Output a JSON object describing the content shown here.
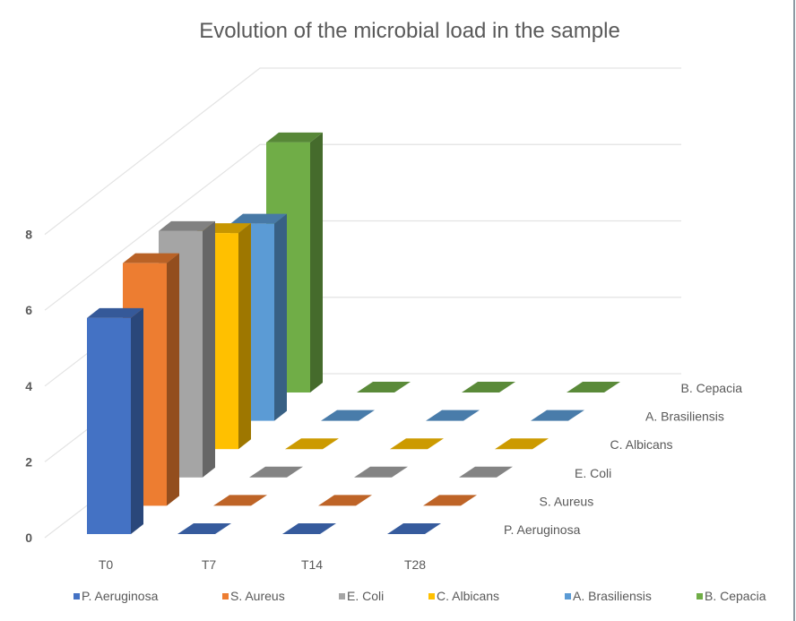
{
  "chart_data": {
    "type": "bar",
    "subtype": "3d-column",
    "title": "Evolution of the microbial load in the sample",
    "xlabel": "",
    "ylabel": "",
    "categories": [
      "T0",
      "T7",
      "T14",
      "T28"
    ],
    "ylim": [
      0,
      8
    ],
    "yticks": [
      "0",
      "2",
      "4",
      "6",
      "8"
    ],
    "grid": true,
    "legend_position": "bottom",
    "series": [
      {
        "name": "P. Aeruginosa",
        "color": "#4472c4",
        "values": [
          5.7,
          0,
          0,
          0
        ]
      },
      {
        "name": "S. Aureus",
        "color": "#ed7d31",
        "values": [
          6.4,
          0,
          0,
          0
        ]
      },
      {
        "name": "E. Coli",
        "color": "#a5a5a5",
        "values": [
          6.5,
          0,
          0,
          0
        ]
      },
      {
        "name": "C. Albicans",
        "color": "#ffc000",
        "values": [
          5.7,
          0,
          0,
          0
        ]
      },
      {
        "name": "A. Brasiliensis",
        "color": "#5b9bd5",
        "values": [
          5.2,
          0,
          0,
          0
        ]
      },
      {
        "name": "B. Cepacia",
        "color": "#70ad47",
        "values": [
          6.6,
          0,
          0,
          0
        ]
      }
    ]
  }
}
